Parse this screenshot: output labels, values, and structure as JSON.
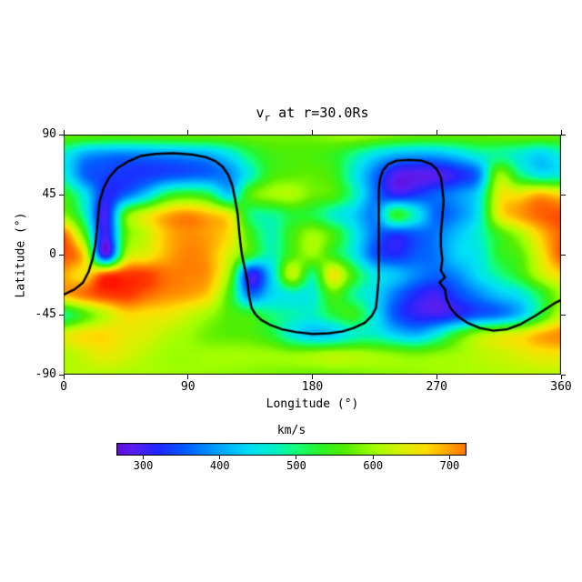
{
  "figure": {
    "background": "#ffffff",
    "title_parts": {
      "base": "v",
      "sub": "r",
      "rest": " at r=30.0Rs"
    },
    "x_axis_title": "Longitude (°)",
    "y_axis_title": "Latitude (°)",
    "colorbar_title": "km/s"
  },
  "chart_data": {
    "type": "heatmap",
    "title": "v_r at r=30.0Rs",
    "xlabel": "Longitude (°)",
    "ylabel": "Latitude (°)",
    "xlim": [
      0,
      360
    ],
    "ylim": [
      -90,
      90
    ],
    "x_ticks": [
      0,
      90,
      180,
      270,
      360
    ],
    "y_ticks": [
      90,
      45,
      0,
      -45,
      -90
    ],
    "grid": false,
    "units": "km/s",
    "grid_lon": [
      0,
      15,
      30,
      45,
      60,
      75,
      90,
      105,
      120,
      135,
      150,
      165,
      180,
      195,
      210,
      225,
      240,
      255,
      270,
      285,
      300,
      315,
      330,
      345,
      360
    ],
    "grid_lat": [
      90,
      75,
      60,
      45,
      30,
      15,
      0,
      -15,
      -30,
      -45,
      -60,
      -75,
      -90
    ],
    "values": [
      [
        575,
        572,
        570,
        570,
        572,
        575,
        578,
        580,
        580,
        582,
        580,
        577,
        580,
        595,
        605,
        598,
        588,
        580,
        576,
        575,
        575,
        578,
        582,
        583,
        578
      ],
      [
        465,
        400,
        380,
        375,
        380,
        386,
        394,
        406,
        448,
        512,
        548,
        558,
        556,
        540,
        495,
        445,
        412,
        400,
        405,
        430,
        468,
        488,
        462,
        432,
        465
      ],
      [
        462,
        362,
        338,
        328,
        330,
        342,
        352,
        362,
        382,
        468,
        548,
        565,
        568,
        548,
        460,
        370,
        292,
        282,
        288,
        315,
        372,
        590,
        505,
        452,
        462
      ],
      [
        545,
        450,
        320,
        360,
        430,
        520,
        545,
        520,
        430,
        560,
        600,
        610,
        575,
        558,
        480,
        372,
        312,
        330,
        358,
        385,
        440,
        640,
        660,
        690,
        668
      ],
      [
        590,
        480,
        300,
        560,
        640,
        690,
        708,
        685,
        645,
        505,
        490,
        525,
        520,
        470,
        430,
        380,
        530,
        460,
        360,
        380,
        450,
        645,
        700,
        730,
        740
      ],
      [
        730,
        560,
        302,
        560,
        625,
        688,
        708,
        698,
        662,
        548,
        478,
        548,
        600,
        555,
        460,
        368,
        330,
        352,
        372,
        420,
        465,
        545,
        605,
        680,
        730
      ],
      [
        742,
        660,
        295,
        600,
        648,
        692,
        715,
        700,
        632,
        540,
        475,
        555,
        595,
        540,
        460,
        352,
        322,
        352,
        372,
        430,
        452,
        530,
        562,
        650,
        732
      ],
      [
        695,
        665,
        740,
        755,
        750,
        722,
        715,
        700,
        590,
        310,
        425,
        620,
        500,
        655,
        540,
        450,
        420,
        380,
        360,
        385,
        440,
        490,
        540,
        620,
        670
      ],
      [
        690,
        722,
        750,
        755,
        730,
        710,
        700,
        670,
        550,
        370,
        430,
        460,
        460,
        560,
        490,
        440,
        370,
        320,
        300,
        340,
        380,
        420,
        450,
        520,
        600
      ],
      [
        500,
        560,
        620,
        668,
        662,
        655,
        630,
        600,
        560,
        540,
        500,
        480,
        470,
        520,
        540,
        450,
        350,
        310,
        300,
        320,
        350,
        370,
        420,
        520,
        620
      ],
      [
        640,
        665,
        670,
        650,
        640,
        615,
        600,
        575,
        565,
        560,
        530,
        460,
        420,
        430,
        470,
        470,
        430,
        410,
        460,
        540,
        600,
        630,
        650,
        690,
        710
      ],
      [
        610,
        630,
        650,
        635,
        615,
        600,
        598,
        600,
        602,
        600,
        598,
        595,
        600,
        612,
        608,
        600,
        590,
        580,
        590,
        600,
        615,
        625,
        640,
        655,
        660
      ],
      [
        612,
        615,
        612,
        608,
        605,
        600,
        598,
        596,
        592,
        588,
        582,
        578,
        575,
        578,
        582,
        588,
        592,
        596,
        600,
        605,
        608,
        612,
        615,
        618,
        615
      ]
    ],
    "contour_line": [
      [
        0,
        -30
      ],
      [
        8,
        -26
      ],
      [
        14,
        -21
      ],
      [
        18,
        -13
      ],
      [
        21,
        -3
      ],
      [
        23,
        8
      ],
      [
        24,
        18
      ],
      [
        25,
        30
      ],
      [
        26,
        40
      ],
      [
        29,
        50
      ],
      [
        33,
        58
      ],
      [
        39,
        65
      ],
      [
        47,
        70
      ],
      [
        56,
        74
      ],
      [
        66,
        75.5
      ],
      [
        80,
        76
      ],
      [
        93,
        75
      ],
      [
        103,
        73
      ],
      [
        110,
        70
      ],
      [
        115,
        66
      ],
      [
        119,
        60
      ],
      [
        122,
        52
      ],
      [
        124,
        42
      ],
      [
        126,
        30
      ],
      [
        127,
        18
      ],
      [
        128,
        8
      ],
      [
        129,
        0
      ],
      [
        131,
        -10
      ],
      [
        133,
        -20
      ],
      [
        134,
        -30
      ],
      [
        136,
        -40
      ],
      [
        139,
        -45
      ],
      [
        143,
        -49
      ],
      [
        150,
        -53
      ],
      [
        158,
        -56
      ],
      [
        168,
        -58
      ],
      [
        180,
        -59.5
      ],
      [
        192,
        -59
      ],
      [
        202,
        -57.5
      ],
      [
        210,
        -55
      ],
      [
        218,
        -51
      ],
      [
        223,
        -46
      ],
      [
        226,
        -40
      ],
      [
        227,
        -30
      ],
      [
        228,
        -18
      ],
      [
        228,
        -5
      ],
      [
        228,
        8
      ],
      [
        228,
        22
      ],
      [
        228,
        36
      ],
      [
        228,
        48
      ],
      [
        229,
        57
      ],
      [
        231,
        63
      ],
      [
        235,
        68
      ],
      [
        241,
        70.5
      ],
      [
        250,
        71
      ],
      [
        259,
        70.5
      ],
      [
        266,
        68
      ],
      [
        270,
        64
      ],
      [
        273,
        58
      ],
      [
        274,
        50
      ],
      [
        275,
        40
      ],
      [
        274,
        28
      ],
      [
        273,
        16
      ],
      [
        273,
        6
      ],
      [
        274,
        -4
      ],
      [
        273,
        -12
      ],
      [
        276,
        -17
      ],
      [
        272,
        -21
      ],
      [
        276,
        -26
      ],
      [
        277,
        -33
      ],
      [
        280,
        -40
      ],
      [
        285,
        -46
      ],
      [
        292,
        -51
      ],
      [
        301,
        -55
      ],
      [
        311,
        -57
      ],
      [
        321,
        -56
      ],
      [
        331,
        -52
      ],
      [
        341,
        -46
      ],
      [
        350,
        -40
      ],
      [
        356,
        -36
      ],
      [
        360,
        -34
      ]
    ],
    "contour_color": "#000000",
    "colorbar": {
      "label": "km/s",
      "ticks": [
        300,
        400,
        500,
        600,
        700
      ],
      "range": [
        265,
        722
      ],
      "position": "bottom-horizontal"
    },
    "colormap": [
      [
        250,
        "#6600C8"
      ],
      [
        285,
        "#5A1EF0"
      ],
      [
        320,
        "#1E28FF"
      ],
      [
        360,
        "#0064FF"
      ],
      [
        400,
        "#00A8FF"
      ],
      [
        440,
        "#00E0F5"
      ],
      [
        470,
        "#00F0C8"
      ],
      [
        500,
        "#14FF78"
      ],
      [
        530,
        "#28F528"
      ],
      [
        565,
        "#55EE00"
      ],
      [
        600,
        "#A0FF00"
      ],
      [
        640,
        "#DCF000"
      ],
      [
        670,
        "#FFDC00"
      ],
      [
        700,
        "#FFA000"
      ],
      [
        725,
        "#FF6E00"
      ],
      [
        750,
        "#FF3C00"
      ],
      [
        780,
        "#FF1400"
      ]
    ]
  }
}
